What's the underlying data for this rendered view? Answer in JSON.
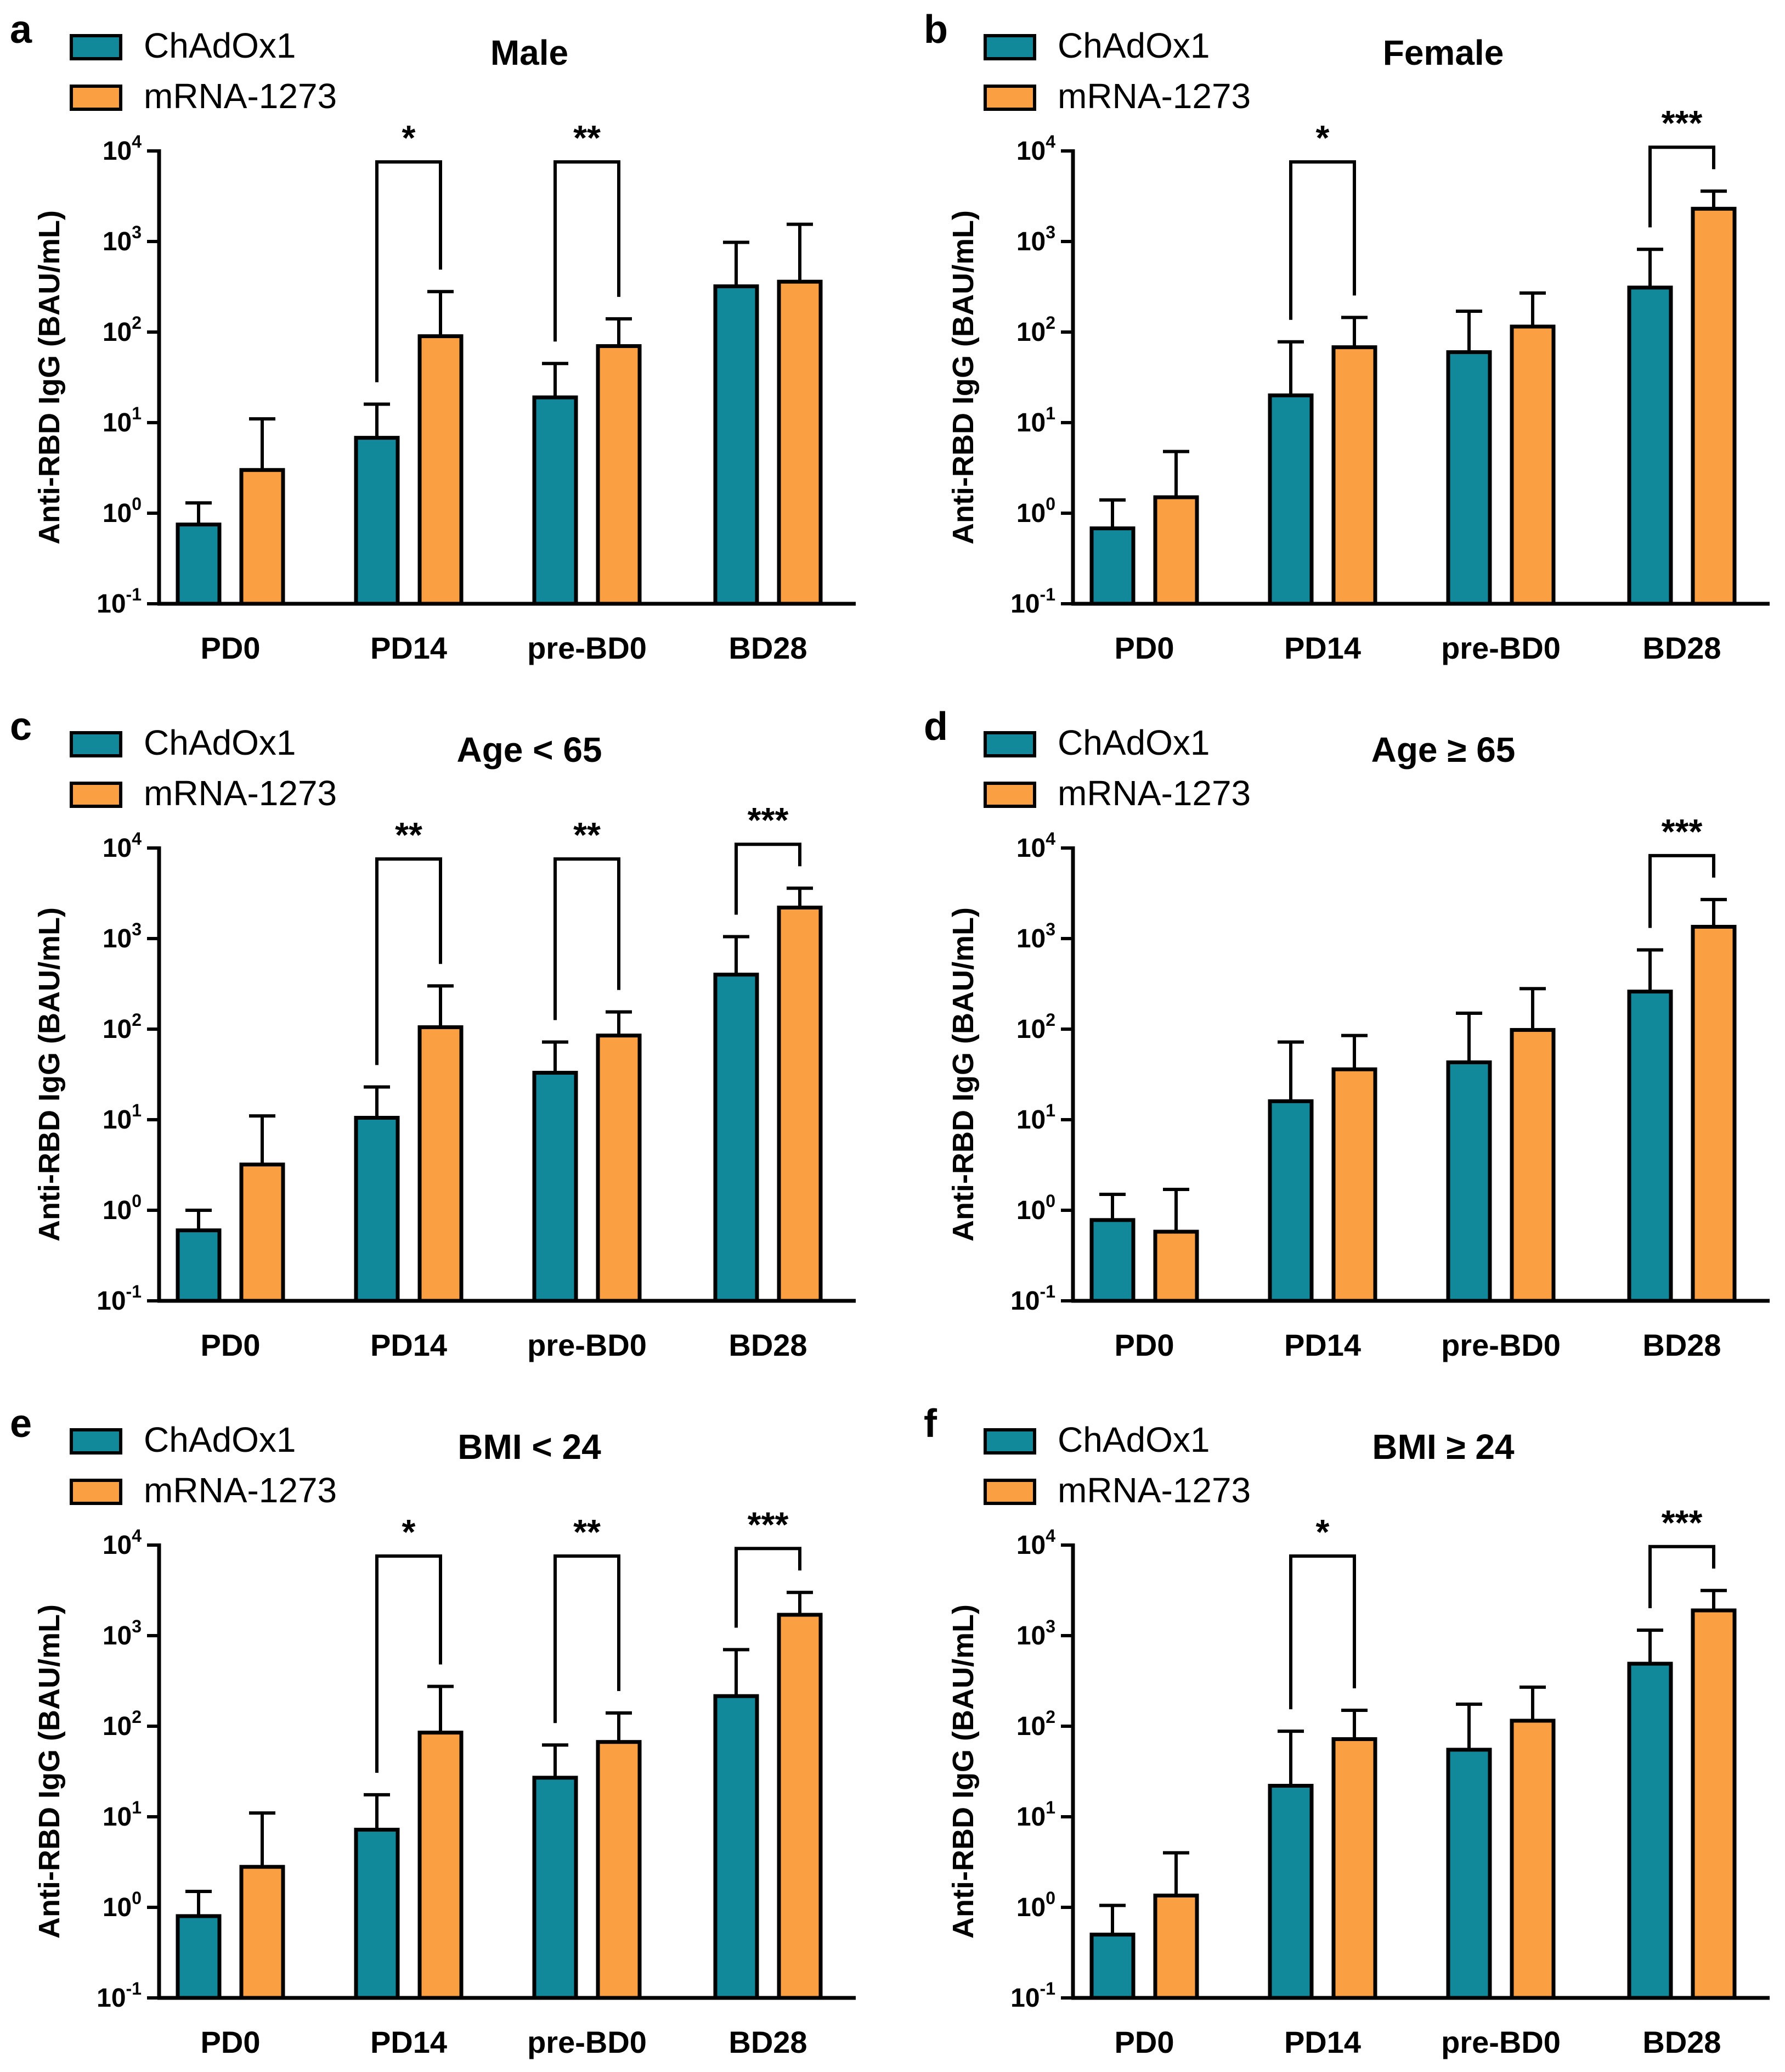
{
  "legend": {
    "series": [
      {
        "name": "ChAdOx1",
        "color": "#12889b"
      },
      {
        "name": "mRNA-1273",
        "color": "#fba042"
      }
    ]
  },
  "chart_data": [
    {
      "type": "bar",
      "panel": "a",
      "title": "Male",
      "categories": [
        "PD0",
        "PD14",
        "pre-BD0",
        "BD28"
      ],
      "ylabel": "Anti-RBD IgG (BAU/mL)",
      "yscale": "log",
      "ylim": [
        0.1,
        10000
      ],
      "yticks": [
        {
          "base": "10",
          "exp": "4"
        },
        {
          "base": "10",
          "exp": "3"
        },
        {
          "base": "10",
          "exp": "2"
        },
        {
          "base": "10",
          "exp": "1"
        },
        {
          "base": "10",
          "exp": "0"
        },
        {
          "base": "10",
          "exp": "-1"
        }
      ],
      "series": [
        {
          "name": "ChAdOx1",
          "values": [
            0.75,
            6.8,
            19,
            320
          ],
          "error_upper": [
            1.3,
            16,
            45,
            980
          ]
        },
        {
          "name": "mRNA-1273",
          "values": [
            3.0,
            90,
            70,
            360
          ],
          "error_upper": [
            11,
            280,
            140,
            1550
          ]
        }
      ],
      "significance": [
        {
          "category": "PD14",
          "label": "*"
        },
        {
          "category": "pre-BD0",
          "label": "**"
        }
      ]
    },
    {
      "type": "bar",
      "panel": "b",
      "title": "Female",
      "categories": [
        "PD0",
        "PD14",
        "pre-BD0",
        "BD28"
      ],
      "ylabel": "Anti-RBD IgG (BAU/mL)",
      "yscale": "log",
      "ylim": [
        0.1,
        10000
      ],
      "yticks": [
        {
          "base": "10",
          "exp": "4"
        },
        {
          "base": "10",
          "exp": "3"
        },
        {
          "base": "10",
          "exp": "2"
        },
        {
          "base": "10",
          "exp": "1"
        },
        {
          "base": "10",
          "exp": "0"
        },
        {
          "base": "10",
          "exp": "-1"
        }
      ],
      "series": [
        {
          "name": "ChAdOx1",
          "values": [
            0.68,
            20,
            60,
            310
          ],
          "error_upper": [
            1.4,
            78,
            170,
            820
          ]
        },
        {
          "name": "mRNA-1273",
          "values": [
            1.5,
            68,
            115,
            2300
          ],
          "error_upper": [
            4.8,
            145,
            270,
            3600
          ]
        }
      ],
      "significance": [
        {
          "category": "PD14",
          "label": "*"
        },
        {
          "category": "BD28",
          "label": "***"
        }
      ]
    },
    {
      "type": "bar",
      "panel": "c",
      "title": "Age < 65",
      "categories": [
        "PD0",
        "PD14",
        "pre-BD0",
        "BD28"
      ],
      "ylabel": "Anti-RBD IgG (BAU/mL)",
      "yscale": "log",
      "ylim": [
        0.1,
        10000
      ],
      "yticks": [
        {
          "base": "10",
          "exp": "4"
        },
        {
          "base": "10",
          "exp": "3"
        },
        {
          "base": "10",
          "exp": "2"
        },
        {
          "base": "10",
          "exp": "1"
        },
        {
          "base": "10",
          "exp": "0"
        },
        {
          "base": "10",
          "exp": "-1"
        }
      ],
      "series": [
        {
          "name": "ChAdOx1",
          "values": [
            0.6,
            10.5,
            33,
            400
          ],
          "error_upper": [
            1.0,
            23,
            72,
            1050
          ]
        },
        {
          "name": "mRNA-1273",
          "values": [
            3.2,
            105,
            85,
            2200
          ],
          "error_upper": [
            11,
            300,
            155,
            3600
          ]
        }
      ],
      "significance": [
        {
          "category": "PD14",
          "label": "**"
        },
        {
          "category": "pre-BD0",
          "label": "**"
        },
        {
          "category": "BD28",
          "label": "***"
        }
      ]
    },
    {
      "type": "bar",
      "panel": "d",
      "title": "Age ≥ 65",
      "categories": [
        "PD0",
        "PD14",
        "pre-BD0",
        "BD28"
      ],
      "ylabel": "Anti-RBD IgG (BAU/mL)",
      "yscale": "log",
      "ylim": [
        0.1,
        10000
      ],
      "yticks": [
        {
          "base": "10",
          "exp": "4"
        },
        {
          "base": "10",
          "exp": "3"
        },
        {
          "base": "10",
          "exp": "2"
        },
        {
          "base": "10",
          "exp": "1"
        },
        {
          "base": "10",
          "exp": "0"
        },
        {
          "base": "10",
          "exp": "-1"
        }
      ],
      "series": [
        {
          "name": "ChAdOx1",
          "values": [
            0.78,
            16,
            43,
            260
          ],
          "error_upper": [
            1.5,
            72,
            150,
            750
          ]
        },
        {
          "name": "mRNA-1273",
          "values": [
            0.58,
            36,
            98,
            1350
          ],
          "error_upper": [
            1.7,
            85,
            280,
            2700
          ]
        }
      ],
      "significance": [
        {
          "category": "BD28",
          "label": "***"
        }
      ]
    },
    {
      "type": "bar",
      "panel": "e",
      "title": "BMI < 24",
      "categories": [
        "PD0",
        "PD14",
        "pre-BD0",
        "BD28"
      ],
      "ylabel": "Anti-RBD IgG (BAU/mL)",
      "yscale": "log",
      "ylim": [
        0.1,
        10000
      ],
      "yticks": [
        {
          "base": "10",
          "exp": "4"
        },
        {
          "base": "10",
          "exp": "3"
        },
        {
          "base": "10",
          "exp": "2"
        },
        {
          "base": "10",
          "exp": "1"
        },
        {
          "base": "10",
          "exp": "0"
        },
        {
          "base": "10",
          "exp": "-1"
        }
      ],
      "series": [
        {
          "name": "ChAdOx1",
          "values": [
            0.8,
            7.2,
            27,
            215
          ],
          "error_upper": [
            1.5,
            17.5,
            62,
            700
          ]
        },
        {
          "name": "mRNA-1273",
          "values": [
            2.8,
            85,
            67,
            1700
          ],
          "error_upper": [
            11,
            275,
            140,
            3000
          ]
        }
      ],
      "significance": [
        {
          "category": "PD14",
          "label": "*"
        },
        {
          "category": "pre-BD0",
          "label": "**"
        },
        {
          "category": "BD28",
          "label": "***"
        }
      ]
    },
    {
      "type": "bar",
      "panel": "f",
      "title": "BMI ≥ 24",
      "categories": [
        "PD0",
        "PD14",
        "pre-BD0",
        "BD28"
      ],
      "ylabel": "Anti-RBD IgG (BAU/mL)",
      "yscale": "log",
      "ylim": [
        0.1,
        10000
      ],
      "yticks": [
        {
          "base": "10",
          "exp": "4"
        },
        {
          "base": "10",
          "exp": "3"
        },
        {
          "base": "10",
          "exp": "2"
        },
        {
          "base": "10",
          "exp": "1"
        },
        {
          "base": "10",
          "exp": "0"
        },
        {
          "base": "10",
          "exp": "-1"
        }
      ],
      "series": [
        {
          "name": "ChAdOx1",
          "values": [
            0.5,
            22,
            55,
            490
          ],
          "error_upper": [
            1.05,
            88,
            175,
            1150
          ]
        },
        {
          "name": "mRNA-1273",
          "values": [
            1.35,
            72,
            115,
            1900
          ],
          "error_upper": [
            4.0,
            150,
            270,
            3150
          ]
        }
      ],
      "significance": [
        {
          "category": "PD14",
          "label": "*"
        },
        {
          "category": "BD28",
          "label": "***"
        }
      ]
    }
  ]
}
